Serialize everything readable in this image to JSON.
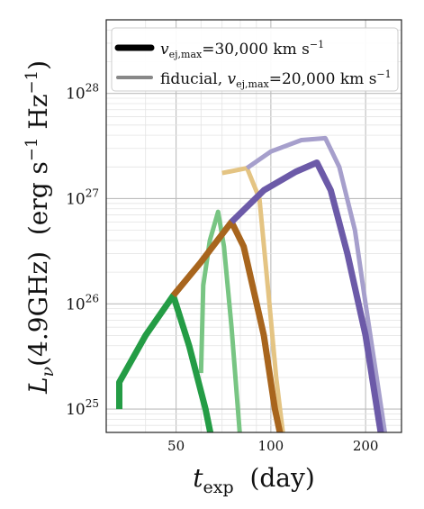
{
  "chart_data": {
    "type": "line",
    "xscale": "log",
    "yscale": "log",
    "xlim": [
      30,
      260
    ],
    "ylim": [
      6e+24,
      5e+28
    ],
    "xticks": [
      {
        "value": 50,
        "label": "50"
      },
      {
        "value": 100,
        "label": "100"
      },
      {
        "value": 200,
        "label": "200"
      }
    ],
    "yticks": [
      {
        "value": 1e+25,
        "base": "10",
        "exp": "25"
      },
      {
        "value": 1e+26,
        "base": "10",
        "exp": "26"
      },
      {
        "value": 1e+27,
        "base": "10",
        "exp": "27"
      },
      {
        "value": 1e+28,
        "base": "10",
        "exp": "28"
      }
    ],
    "xlabel": {
      "main": "t",
      "sub": "exp",
      "unit": "(day)"
    },
    "ylabel": {
      "main": "L",
      "sub": "ν",
      "arg": "(4.9GHz)",
      "unit_pre": "(erg s",
      "unit_exp1": "−1",
      "unit_mid": " Hz",
      "unit_exp2": "−1",
      "unit_post": ")"
    },
    "grid": true,
    "legend": {
      "position": "top-right",
      "entries": [
        {
          "style": "thick",
          "color": "#000000",
          "prefix": "",
          "v": "v",
          "vsub": "ej,max",
          "value": "=30,000 km s",
          "exp": "−1"
        },
        {
          "style": "thin",
          "color": "#888888",
          "prefix": "fiducial, ",
          "v": "v",
          "vsub": "ej,max",
          "value": "=20,000 km s",
          "exp": "−1"
        }
      ]
    },
    "series": [
      {
        "color": "#e4c483",
        "width": 5,
        "points": [
          [
            70,
            1.75e+27
          ],
          [
            84,
            1.95e+27
          ],
          [
            92,
            1e+27
          ],
          [
            99,
            1e+26
          ],
          [
            104,
            2e+25
          ],
          [
            110,
            5e+24
          ]
        ]
      },
      {
        "color": "#78c583",
        "width": 5,
        "points": [
          [
            60,
            2.2e+25
          ],
          [
            61,
            1.5e+26
          ],
          [
            64,
            4e+26
          ],
          [
            68,
            7.5e+26
          ],
          [
            71,
            3.5e+26
          ],
          [
            75,
            6e+25
          ],
          [
            80,
            5e+24
          ]
        ]
      },
      {
        "color": "#a69fcc",
        "width": 5,
        "points": [
          [
            84,
            1.95e+27
          ],
          [
            100,
            2.8e+27
          ],
          [
            125,
            3.6e+27
          ],
          [
            149,
            3.75e+27
          ],
          [
            165,
            2e+27
          ],
          [
            185,
            5e+26
          ],
          [
            200,
            1e+26
          ],
          [
            220,
            1.5e+25
          ],
          [
            235,
            4e+24
          ]
        ]
      },
      {
        "color": "#249c45",
        "width": 7,
        "points": [
          [
            33,
            1e+25
          ],
          [
            33,
            1.8e+25
          ],
          [
            40,
            5e+25
          ],
          [
            49,
            1.2e+26
          ],
          [
            55,
            4e+25
          ],
          [
            62,
            1e+25
          ],
          [
            66,
            4e+24
          ]
        ]
      },
      {
        "color": "#a8651d",
        "width": 7,
        "points": [
          [
            49,
            1.2e+26
          ],
          [
            60,
            2.5e+26
          ],
          [
            75,
            6e+26
          ],
          [
            82,
            3.5e+26
          ],
          [
            95,
            5e+25
          ],
          [
            103,
            1e+25
          ],
          [
            110,
            4e+24
          ]
        ]
      },
      {
        "color": "#6c5aa8",
        "width": 7,
        "points": [
          [
            75,
            6e+26
          ],
          [
            95,
            1.2e+27
          ],
          [
            120,
            1.8e+27
          ],
          [
            140,
            2.2e+27
          ],
          [
            155,
            1.2e+27
          ],
          [
            175,
            3e+26
          ],
          [
            200,
            5e+25
          ],
          [
            220,
            8e+24
          ],
          [
            232,
            3e+24
          ]
        ]
      }
    ]
  }
}
